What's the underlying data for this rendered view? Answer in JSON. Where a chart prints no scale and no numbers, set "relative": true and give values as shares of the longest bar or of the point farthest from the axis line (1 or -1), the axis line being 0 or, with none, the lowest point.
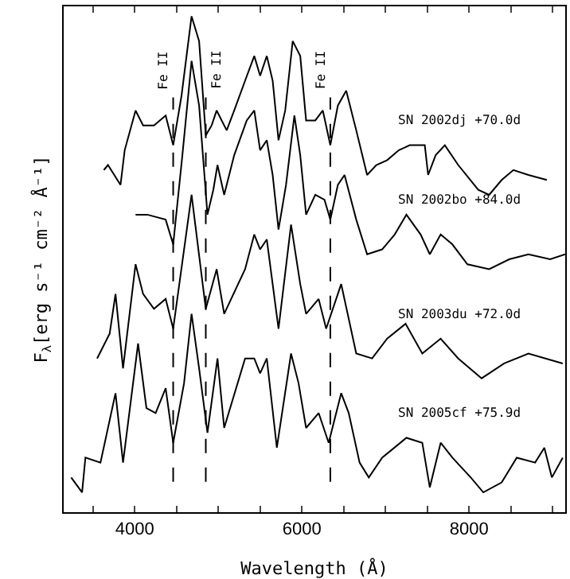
{
  "chart_data": {
    "type": "line",
    "relative": true,
    "xlabel": "Wavelength (Å)",
    "ylabel": "F$_{λ}$[erg s⁻¹ cm⁻² Å⁻¹]",
    "xlim": [
      3150,
      9150
    ],
    "xticks": [
      {
        "value": 3500,
        "label": null
      },
      4000,
      {
        "value": 4500,
        "label": null
      },
      {
        "value": 5000,
        "label": null
      },
      {
        "value": 5500,
        "label": null
      },
      6000,
      {
        "value": 6500,
        "label": null
      },
      {
        "value": 7000,
        "label": null
      },
      {
        "value": 7500,
        "label": null
      },
      8000,
      {
        "value": 8500,
        "label": null
      },
      {
        "value": 9000,
        "label": null
      }
    ],
    "legend": false,
    "marker": "none",
    "line_style": "solid",
    "ref_lines": [
      {
        "axis": "x",
        "value": 4460,
        "label": "Fe II",
        "line_style": "dashed",
        "color": "#000000"
      },
      {
        "axis": "x",
        "value": 4850,
        "label": "Fe II",
        "line_style": "dashed",
        "color": "#000000"
      },
      {
        "axis": "x",
        "value": 6340,
        "label": "Fe II",
        "line_style": "dashed",
        "color": "#000000"
      }
    ],
    "series": [
      {
        "name": "SN 2002dj +70.0d",
        "color": "#000000",
        "x": [
          3630,
          3680,
          3830,
          3880,
          4010,
          4100,
          4230,
          4370,
          4460,
          4560,
          4680,
          4770,
          4850,
          4920,
          4980,
          5100,
          5190,
          5320,
          5430,
          5500,
          5580,
          5650,
          5720,
          5800,
          5890,
          5980,
          6050,
          6160,
          6250,
          6340,
          6430,
          6530,
          6650,
          6780,
          6890,
          7020,
          7160,
          7290,
          7470,
          7510,
          7600,
          7710,
          7870,
          8110,
          8240,
          8390,
          8530,
          8710,
          8930
        ],
        "values": [
          0.69,
          0.7,
          0.66,
          0.73,
          0.81,
          0.78,
          0.78,
          0.8,
          0.74,
          0.84,
          1.0,
          0.95,
          0.76,
          0.78,
          0.81,
          0.77,
          0.81,
          0.87,
          0.92,
          0.88,
          0.92,
          0.87,
          0.75,
          0.81,
          0.95,
          0.92,
          0.79,
          0.79,
          0.81,
          0.74,
          0.82,
          0.85,
          0.77,
          0.68,
          0.7,
          0.71,
          0.73,
          0.74,
          0.74,
          0.68,
          0.72,
          0.74,
          0.7,
          0.65,
          0.64,
          0.67,
          0.69,
          0.68,
          0.67
        ]
      },
      {
        "name": "SN 2002bo +84.0d",
        "color": "#000000",
        "x": [
          4010,
          4150,
          4370,
          4460,
          4570,
          4680,
          4770,
          4870,
          4940,
          4990,
          5070,
          5190,
          5340,
          5430,
          5500,
          5580,
          5650,
          5720,
          5810,
          5910,
          5980,
          6050,
          6160,
          6270,
          6340,
          6430,
          6510,
          6650,
          6780,
          6960,
          7110,
          7250,
          7420,
          7530,
          7660,
          7800,
          7980,
          8240,
          8480,
          8710,
          8970,
          9150
        ],
        "values": [
          0.6,
          0.6,
          0.59,
          0.54,
          0.72,
          0.91,
          0.82,
          0.6,
          0.65,
          0.7,
          0.64,
          0.72,
          0.79,
          0.81,
          0.73,
          0.75,
          0.68,
          0.57,
          0.66,
          0.8,
          0.72,
          0.6,
          0.64,
          0.63,
          0.59,
          0.66,
          0.68,
          0.59,
          0.52,
          0.53,
          0.56,
          0.6,
          0.56,
          0.52,
          0.56,
          0.54,
          0.5,
          0.49,
          0.51,
          0.52,
          0.51,
          0.52
        ]
      },
      {
        "name": "SN 2003du +72.0d",
        "color": "#000000",
        "x": [
          3550,
          3700,
          3770,
          3860,
          4010,
          4100,
          4230,
          4370,
          4460,
          4680,
          4850,
          4980,
          5070,
          5320,
          5430,
          5500,
          5580,
          5720,
          5870,
          5980,
          6050,
          6200,
          6290,
          6470,
          6650,
          6840,
          7020,
          7240,
          7440,
          7660,
          7870,
          8150,
          8420,
          8710,
          9120
        ],
        "values": [
          0.31,
          0.36,
          0.44,
          0.29,
          0.5,
          0.44,
          0.41,
          0.43,
          0.37,
          0.64,
          0.41,
          0.49,
          0.4,
          0.49,
          0.56,
          0.53,
          0.55,
          0.37,
          0.58,
          0.46,
          0.4,
          0.43,
          0.37,
          0.46,
          0.32,
          0.31,
          0.35,
          0.38,
          0.32,
          0.35,
          0.31,
          0.27,
          0.3,
          0.32,
          0.3
        ]
      },
      {
        "name": "SN 2005cf +75.9d",
        "color": "#000000",
        "x": [
          3240,
          3370,
          3410,
          3590,
          3770,
          3860,
          4040,
          4140,
          4250,
          4370,
          4460,
          4590,
          4680,
          4770,
          4870,
          4990,
          5070,
          5320,
          5430,
          5500,
          5580,
          5700,
          5870,
          5960,
          6050,
          6200,
          6320,
          6470,
          6560,
          6690,
          6800,
          6960,
          7250,
          7440,
          7530,
          7660,
          7800,
          8020,
          8170,
          8390,
          8570,
          8790,
          8900,
          8990,
          9120
        ],
        "values": [
          0.07,
          0.04,
          0.11,
          0.1,
          0.24,
          0.1,
          0.34,
          0.21,
          0.2,
          0.25,
          0.14,
          0.26,
          0.4,
          0.29,
          0.16,
          0.31,
          0.17,
          0.31,
          0.31,
          0.28,
          0.31,
          0.13,
          0.32,
          0.26,
          0.17,
          0.2,
          0.14,
          0.24,
          0.2,
          0.1,
          0.07,
          0.11,
          0.15,
          0.14,
          0.05,
          0.14,
          0.11,
          0.07,
          0.04,
          0.06,
          0.11,
          0.1,
          0.13,
          0.07,
          0.11
        ]
      }
    ]
  }
}
